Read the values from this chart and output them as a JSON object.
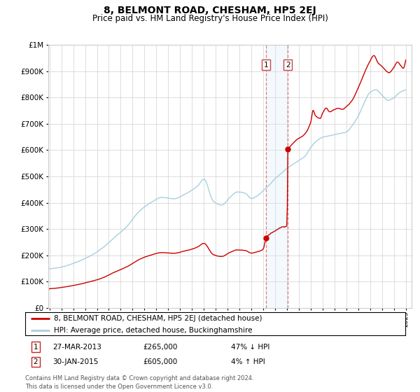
{
  "title": "8, BELMONT ROAD, CHESHAM, HP5 2EJ",
  "subtitle": "Price paid vs. HM Land Registry's House Price Index (HPI)",
  "legend_line1": "8, BELMONT ROAD, CHESHAM, HP5 2EJ (detached house)",
  "legend_line2": "HPI: Average price, detached house, Buckinghamshire",
  "sale1_label": "1",
  "sale1_date": "27-MAR-2013",
  "sale1_price": "£265,000",
  "sale1_hpi": "47% ↓ HPI",
  "sale1_year": 2013.23,
  "sale1_value": 265000,
  "sale2_label": "2",
  "sale2_date": "30-JAN-2015",
  "sale2_price": "£605,000",
  "sale2_hpi": "4% ↑ HPI",
  "sale2_year": 2015.08,
  "sale2_value": 605000,
  "hpi_color": "#a8cfe0",
  "price_color": "#cc0000",
  "vline_color": "#e08080",
  "shade_color": "#d0e8f5",
  "footnote": "Contains HM Land Registry data © Crown copyright and database right 2024.\nThis data is licensed under the Open Government Licence v3.0.",
  "ylim_max": 1000000,
  "xmin": 1994.9,
  "xmax": 2025.5
}
